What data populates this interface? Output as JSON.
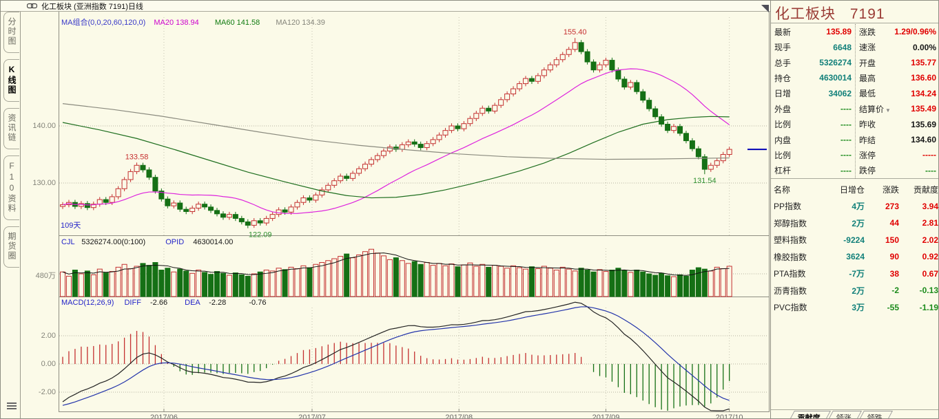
{
  "window": {
    "title": "化工板块 (亚洲指数 7191)日线"
  },
  "sidebar": {
    "tabs": [
      {
        "label": "分时图",
        "active": false
      },
      {
        "label": "K线图",
        "active": true
      },
      {
        "label": "资讯链",
        "active": false
      },
      {
        "label": "F10资料",
        "active": false
      },
      {
        "label": "期货圈",
        "active": false
      }
    ]
  },
  "chart_header": {
    "ma_combo": "MA组合(0,0,20,60,120,0)",
    "ma20": "MA20 138.94",
    "ma60": "MA60 141.58",
    "ma120": "MA120 134.39"
  },
  "volume_header": {
    "cjl_label": "CJL",
    "cjl_value": "5326274.00(0:100)",
    "opid_label": "OPID",
    "opid_value": "4630014.00"
  },
  "macd_header": {
    "name": "MACD(12,26,9)",
    "diff_label": "DIFF",
    "diff_value": "-2.66",
    "dea_label": "DEA",
    "dea_value": "-2.28",
    "macd_value": "-0.76"
  },
  "chart_data": {
    "type": "candlestick",
    "title": "化工板块(亚洲指数 7191)日线",
    "panels": [
      "price",
      "volume",
      "macd"
    ],
    "price_axis_ticks": [
      "140.00",
      "130.00"
    ],
    "volume_axis_tick": "480万",
    "macd_axis_ticks": [
      "2.00",
      "0.00",
      "-2.00"
    ],
    "x_labels": [
      "2017/06",
      "2017/07",
      "2017/08",
      "2017/09",
      "2017/10"
    ],
    "month_boundaries": [
      16.4,
      40.4,
      64.2,
      88,
      108
    ],
    "days_label": "109天",
    "closes": [
      126.2,
      126.6,
      125.9,
      126.4,
      125.7,
      126.3,
      127.1,
      126.6,
      127.6,
      129.0,
      130.6,
      132.0,
      133.1,
      132.3,
      131.0,
      128.6,
      127.2,
      126.0,
      126.5,
      125.4,
      125.0,
      125.6,
      126.3,
      125.8,
      125.2,
      124.6,
      124.0,
      124.5,
      123.8,
      123.2,
      122.6,
      123.4,
      123.0,
      123.8,
      124.5,
      125.3,
      124.9,
      125.8,
      126.6,
      127.4,
      127.0,
      127.9,
      128.8,
      129.6,
      130.4,
      131.2,
      130.8,
      131.7,
      132.5,
      133.3,
      134.1,
      134.8,
      135.6,
      136.3,
      135.9,
      136.7,
      137.2,
      136.8,
      136.2,
      136.9,
      137.6,
      138.4,
      139.2,
      140.0,
      139.5,
      140.4,
      141.3,
      142.2,
      143.1,
      142.6,
      143.6,
      144.6,
      145.6,
      146.5,
      147.4,
      148.3,
      147.8,
      148.8,
      149.8,
      150.7,
      151.6,
      152.5,
      153.4,
      154.6,
      153.0,
      151.2,
      149.8,
      150.7,
      151.5,
      149.8,
      148.2,
      146.8,
      147.6,
      146.0,
      144.5,
      143.0,
      141.6,
      140.3,
      139.2,
      139.9,
      138.7,
      137.4,
      136.0,
      134.6,
      132.4,
      133.1,
      133.9,
      135.0,
      135.89
    ],
    "volumes": [
      520,
      430,
      560,
      480,
      540,
      460,
      580,
      500,
      530,
      620,
      680,
      590,
      640,
      700,
      660,
      720,
      560,
      600,
      520,
      580,
      540,
      490,
      560,
      510,
      470,
      530,
      490,
      450,
      500,
      460,
      430,
      480,
      520,
      560,
      540,
      600,
      570,
      620,
      590,
      650,
      610,
      680,
      720,
      760,
      800,
      850,
      900,
      820,
      880,
      950,
      1000,
      920,
      860,
      780,
      820,
      760,
      700,
      740,
      680,
      720,
      660,
      700,
      650,
      690,
      630,
      670,
      710,
      640,
      680,
      620,
      660,
      640,
      600,
      650,
      610,
      580,
      630,
      590,
      640,
      600,
      560,
      620,
      580,
      540,
      600,
      560,
      520,
      570,
      530,
      560,
      600,
      550,
      510,
      560,
      520,
      480,
      450,
      490,
      440,
      420,
      460,
      430,
      560,
      610,
      580,
      540,
      620,
      590,
      640
    ],
    "wick_overrides": {
      "12": {
        "high": 133.58
      },
      "30": {
        "low": 122.09
      },
      "83": {
        "high": 155.4
      },
      "104": {
        "low": 131.54
      }
    },
    "annotations": [
      {
        "text": "155.40",
        "index": 83,
        "price": 155.4,
        "placement": "above",
        "color": "#C63030"
      },
      {
        "text": "133.58",
        "index": 12,
        "price": 133.58,
        "placement": "above",
        "color": "#C63030"
      },
      {
        "text": "122.09",
        "index": 32,
        "price": 122.09,
        "placement": "below",
        "color": "#2F8F2F"
      },
      {
        "text": "131.54",
        "index": 104,
        "price": 131.54,
        "placement": "below",
        "color": "#2F8F2F"
      }
    ],
    "ma60_points": [
      [
        0,
        140.6
      ],
      [
        6,
        139.3
      ],
      [
        12,
        137.8
      ],
      [
        18,
        135.9
      ],
      [
        24,
        133.9
      ],
      [
        30,
        131.9
      ],
      [
        36,
        130.2
      ],
      [
        42,
        128.6
      ],
      [
        46,
        127.8
      ],
      [
        50,
        127.4
      ],
      [
        54,
        127.5
      ],
      [
        58,
        128.0
      ],
      [
        62,
        128.8
      ],
      [
        66,
        129.8
      ],
      [
        70,
        130.9
      ],
      [
        74,
        132.1
      ],
      [
        78,
        133.5
      ],
      [
        82,
        135.2
      ],
      [
        86,
        137.1
      ],
      [
        90,
        138.9
      ],
      [
        94,
        140.3
      ],
      [
        98,
        141.1
      ],
      [
        102,
        141.5
      ],
      [
        105,
        141.65
      ],
      [
        108,
        141.58
      ]
    ],
    "ma120_points": [
      [
        0,
        143.9
      ],
      [
        8,
        142.9
      ],
      [
        16,
        141.7
      ],
      [
        24,
        140.3
      ],
      [
        32,
        138.9
      ],
      [
        40,
        137.6
      ],
      [
        48,
        136.6
      ],
      [
        56,
        135.8
      ],
      [
        64,
        135.1
      ],
      [
        72,
        134.6
      ],
      [
        80,
        134.3
      ],
      [
        88,
        134.15
      ],
      [
        96,
        134.2
      ],
      [
        102,
        134.3
      ],
      [
        108,
        134.39
      ]
    ],
    "last_price": 135.89,
    "indicators": {
      "ma20_period": 20,
      "macd": [
        12,
        26,
        9
      ],
      "vol_ma_period": 5
    },
    "colors": {
      "up": "#C43030",
      "down": "#157015",
      "ma20": "#DD22DD",
      "ma60": "#1E6E1E",
      "ma120": "#8A8A7E",
      "diff_line": "#222222",
      "dea_line": "#2233AA",
      "last_price_marker": "#0000B5",
      "background": "#FBFAE8"
    }
  },
  "quote_panel": {
    "title": "化工板块",
    "code": "7191",
    "rows_left": [
      {
        "label": "最新",
        "value": "135.89",
        "color": "red"
      },
      {
        "label": "现手",
        "value": "6648",
        "color": "teal"
      },
      {
        "label": "总手",
        "value": "5326274",
        "color": "teal"
      },
      {
        "label": "持仓",
        "value": "4630014",
        "color": "teal"
      },
      {
        "label": "日增",
        "value": "34062",
        "color": "teal"
      },
      {
        "label": "外盘",
        "value": "----",
        "color": "green"
      },
      {
        "label": "比例",
        "value": "----",
        "color": "green"
      },
      {
        "label": "内盘",
        "value": "----",
        "color": "green"
      },
      {
        "label": "比例",
        "value": "----",
        "color": "green"
      },
      {
        "label": "杠杆",
        "value": "----",
        "color": "green"
      }
    ],
    "rows_right": [
      {
        "label": "涨跌",
        "value": "1.29/0.96%",
        "color": "red"
      },
      {
        "label": "速涨",
        "value": "0.00%",
        "color": "black"
      },
      {
        "label": "开盘",
        "value": "135.77",
        "color": "red"
      },
      {
        "label": "最高",
        "value": "136.60",
        "color": "red"
      },
      {
        "label": "最低",
        "value": "134.24",
        "color": "red"
      },
      {
        "label": "结算价",
        "value": "135.49",
        "color": "red",
        "arrow": "▼"
      },
      {
        "label": "昨收",
        "value": "135.69",
        "color": "black"
      },
      {
        "label": "昨结",
        "value": "134.60",
        "color": "black"
      },
      {
        "label": "涨停",
        "value": "-----",
        "color": "red"
      },
      {
        "label": "跌停",
        "value": "----",
        "color": "green"
      }
    ]
  },
  "contrib_table": {
    "headers": [
      "名称",
      "日增仓",
      "涨跌",
      "贡献度"
    ],
    "rows": [
      {
        "name": "PP指数",
        "position": "4万",
        "change": "273",
        "contribution": "3.94"
      },
      {
        "name": "郑醇指数",
        "position": "2万",
        "change": "44",
        "contribution": "2.81"
      },
      {
        "name": "塑料指数",
        "position": "-9224",
        "change": "150",
        "contribution": "2.02"
      },
      {
        "name": "橡胶指数",
        "position": "3624",
        "change": "90",
        "contribution": "0.92"
      },
      {
        "name": "PTA指数",
        "position": "-7万",
        "change": "38",
        "contribution": "0.67"
      },
      {
        "name": "沥青指数",
        "position": "2万",
        "change": "-2",
        "contribution": "-0.13"
      },
      {
        "name": "PVC指数",
        "position": "3万",
        "change": "-55",
        "contribution": "-1.19"
      }
    ]
  },
  "bottom_tabs": [
    {
      "label": "贡献度",
      "active": true
    },
    {
      "label": "领涨",
      "active": false
    },
    {
      "label": "领跌",
      "active": false
    }
  ]
}
